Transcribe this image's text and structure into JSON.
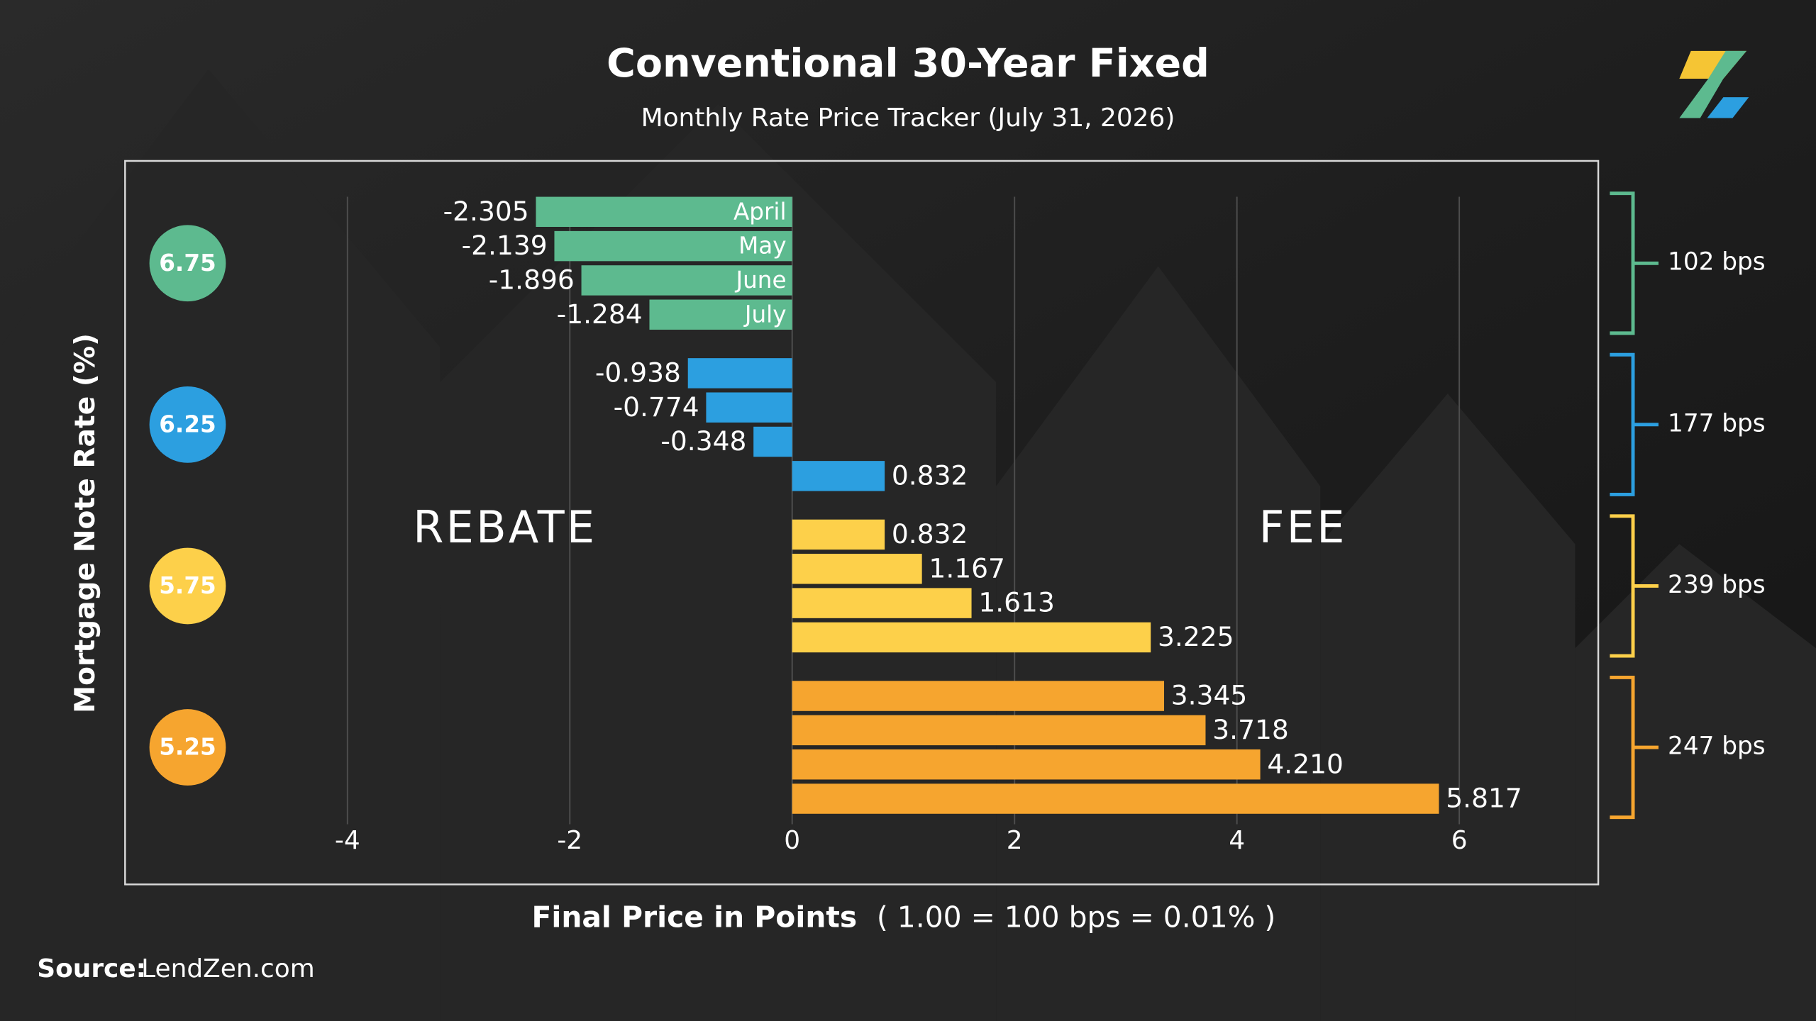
{
  "chart_data": {
    "type": "bar",
    "title": "Conventional 30-Year Fixed",
    "subtitle": "Monthly Rate Price Tracker (July 31, 2026)",
    "x_label": "Final Price in Points",
    "x_label_note": "( 1.00 = 100 bps = 0.01% )",
    "y_label": "Mortgage Note Rate (%)",
    "annotations": [
      "REBATE",
      "FEE"
    ],
    "source_label": "Source:",
    "source": "LendZen.com",
    "categories": [
      "April",
      "May",
      "June",
      "July"
    ],
    "series": [
      {
        "name": "6.75",
        "color": "#5dba8f",
        "spread": "102 bps",
        "values": [
          -2.305,
          -2.139,
          -1.896,
          -1.284
        ],
        "value_labels": [
          "-2.305",
          "-2.139",
          "-1.896",
          "-1.284"
        ]
      },
      {
        "name": "6.25",
        "color": "#2c9fe0",
        "spread": "177 bps",
        "values": [
          -0.938,
          -0.774,
          -0.348,
          0.832
        ],
        "value_labels": [
          "-0.938",
          "-0.774",
          "-0.348",
          "0.832"
        ]
      },
      {
        "name": "5.75",
        "color": "#fdd04a",
        "spread": "239 bps",
        "values": [
          0.832,
          1.167,
          1.613,
          3.225
        ],
        "value_labels": [
          "0.832",
          "1.167",
          "1.613",
          "3.225"
        ]
      },
      {
        "name": "5.25",
        "color": "#f6a52f",
        "spread": "247 bps",
        "values": [
          3.345,
          3.718,
          4.21,
          5.817
        ],
        "value_labels": [
          "3.345",
          "3.718",
          "4.210",
          "5.817"
        ]
      }
    ],
    "xlim": [
      -6,
      7.25
    ],
    "xticks": [
      -4,
      -2,
      0,
      2,
      4,
      6
    ],
    "grid": true
  }
}
